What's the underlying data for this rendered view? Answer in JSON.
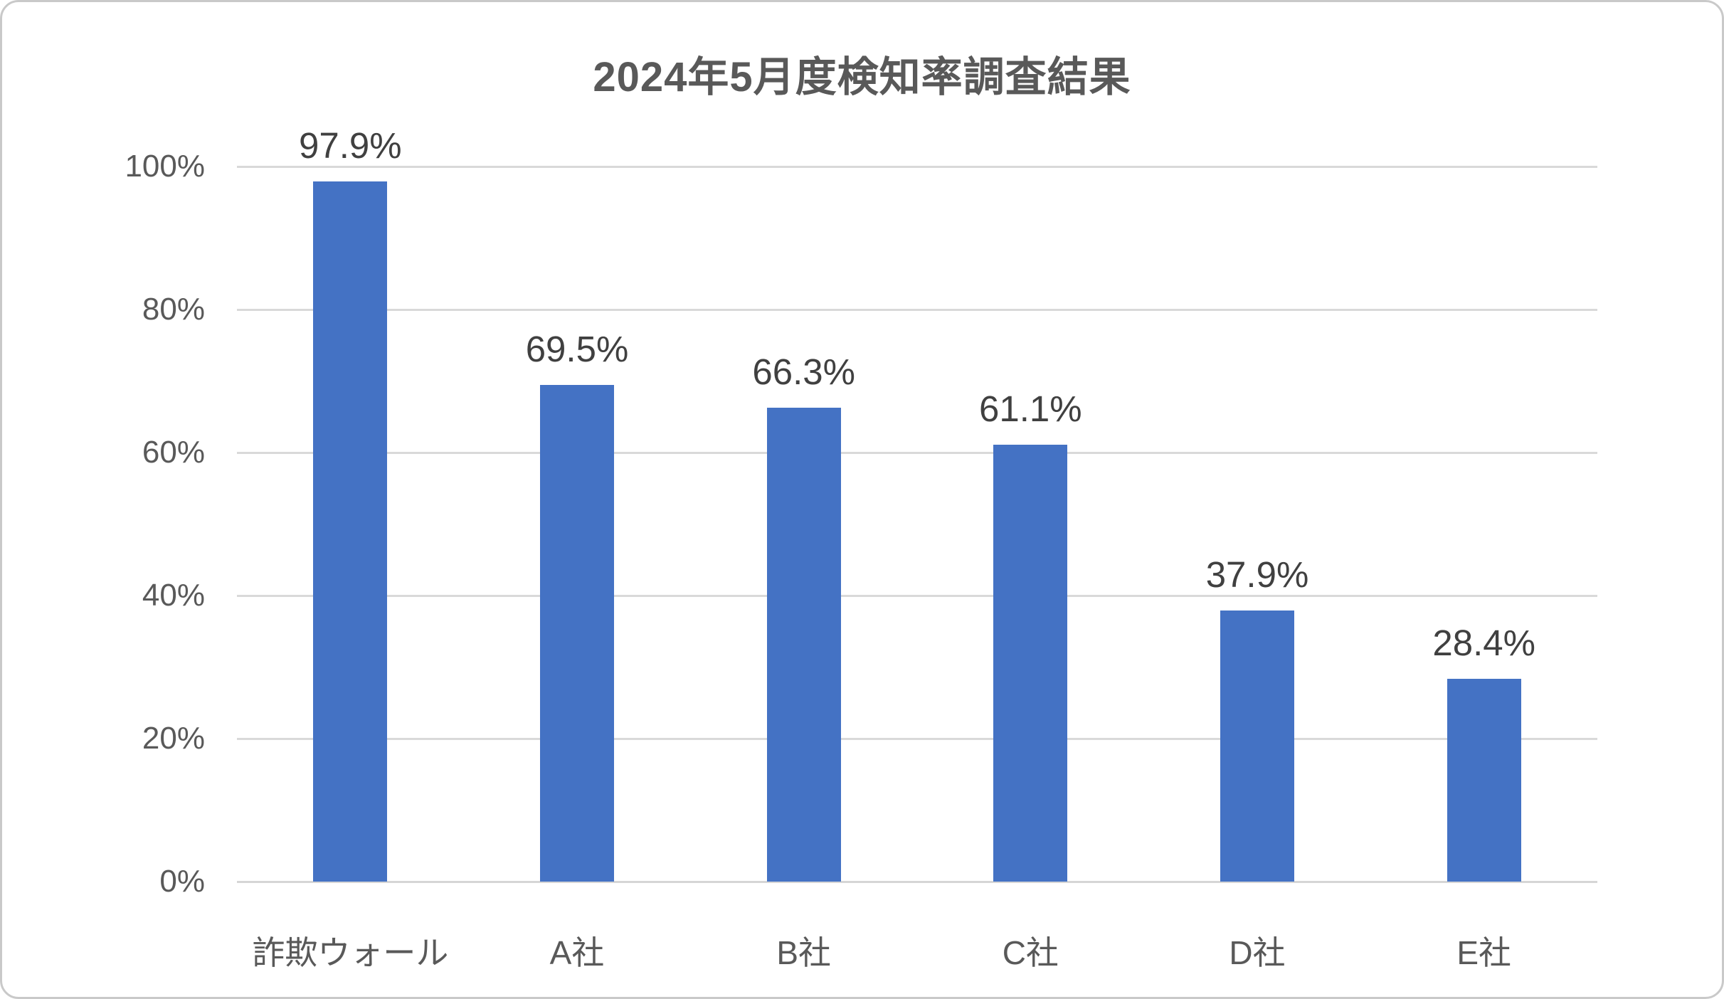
{
  "chart_data": {
    "type": "bar",
    "title": "2024年5月度検知率調査結果",
    "categories": [
      "詐欺ウォール",
      "A社",
      "B社",
      "C社",
      "D社",
      "E社"
    ],
    "values": [
      97.9,
      69.5,
      66.3,
      61.1,
      37.9,
      28.4
    ],
    "data_labels": [
      "97.9%",
      "69.5%",
      "66.3%",
      "61.1%",
      "37.9%",
      "28.4%"
    ],
    "xlabel": "",
    "ylabel": "",
    "ylim": [
      0,
      100
    ],
    "ytick_interval": 20,
    "ytick_labels": [
      "0%",
      "20%",
      "40%",
      "60%",
      "80%",
      "100%"
    ],
    "grid": true,
    "legend": false,
    "colors": {
      "bar": "#4472c4",
      "title": "#595959",
      "axis_text": "#595959",
      "data_label": "#404040",
      "gridline": "#d9d9d9",
      "background": "#ffffff",
      "frame_border": "#c9c9c9"
    }
  }
}
